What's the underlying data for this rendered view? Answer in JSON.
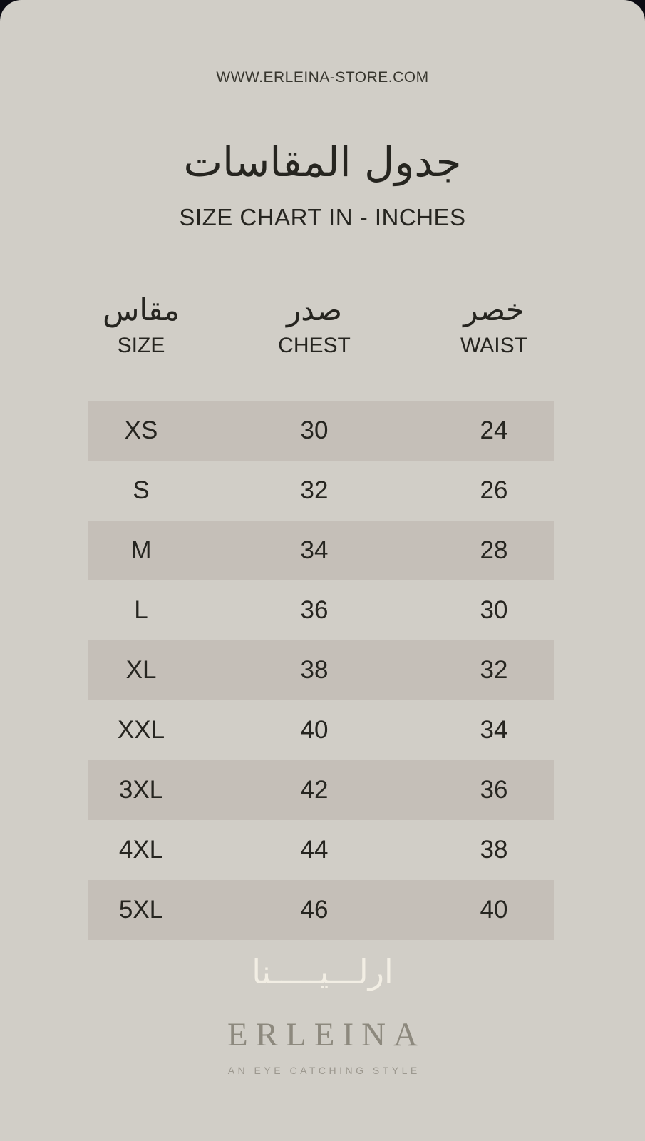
{
  "store": {
    "url": "WWW.ERLEINA-STORE.COM"
  },
  "title": {
    "arabic": "جدول المقاسات",
    "english": "SIZE CHART IN - INCHES"
  },
  "table": {
    "columns": [
      {
        "arabic": "مقاس",
        "english": "SIZE"
      },
      {
        "arabic": "صدر",
        "english": "CHEST"
      },
      {
        "arabic": "خصر",
        "english": "WAIST"
      }
    ],
    "rows": [
      {
        "size": "XS",
        "chest": "30",
        "waist": "24"
      },
      {
        "size": "S",
        "chest": "32",
        "waist": "26"
      },
      {
        "size": "M",
        "chest": "34",
        "waist": "28"
      },
      {
        "size": "L",
        "chest": "36",
        "waist": "30"
      },
      {
        "size": "XL",
        "chest": "38",
        "waist": "32"
      },
      {
        "size": "XXL",
        "chest": "40",
        "waist": "34"
      },
      {
        "size": "3XL",
        "chest": "42",
        "waist": "36"
      },
      {
        "size": "4XL",
        "chest": "44",
        "waist": "38"
      },
      {
        "size": "5XL",
        "chest": "46",
        "waist": "40"
      }
    ]
  },
  "footer": {
    "logo_arabic": "ارلـــيـــــنا",
    "logo_english": "ERLEINA",
    "tagline": "AN EYE CATCHING STYLE"
  },
  "colors": {
    "frame_background": "#0c0c13",
    "card_background": "#d1cec7",
    "row_shade": "#c5bfb8",
    "text": "#262520",
    "logo_arabic": "#f2eee4",
    "logo_english": "#8d897e",
    "tagline": "#9c988f"
  }
}
